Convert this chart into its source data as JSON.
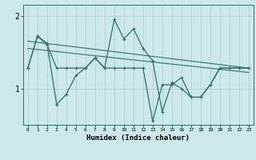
{
  "xlabel": "Humidex (Indice chaleur)",
  "x": [
    0,
    1,
    2,
    3,
    4,
    5,
    6,
    7,
    8,
    9,
    10,
    11,
    12,
    13,
    14,
    15,
    16,
    17,
    18,
    19,
    20,
    21,
    22,
    23
  ],
  "line1": [
    1.28,
    1.72,
    1.62,
    0.78,
    0.92,
    1.18,
    1.28,
    1.42,
    1.28,
    1.95,
    1.68,
    1.82,
    1.55,
    1.38,
    0.68,
    1.08,
    1.0,
    0.88,
    0.88,
    1.05,
    1.28,
    1.28,
    1.28,
    1.28
  ],
  "line2": [
    1.28,
    1.72,
    1.6,
    1.28,
    1.28,
    1.28,
    1.28,
    1.42,
    1.28,
    1.28,
    1.28,
    1.28,
    1.28,
    0.55,
    1.05,
    1.05,
    1.15,
    0.88,
    0.88,
    1.05,
    1.28,
    1.28,
    1.28,
    1.28
  ],
  "trend1_x": [
    0,
    23
  ],
  "trend1_y": [
    1.65,
    1.28
  ],
  "trend2_x": [
    0,
    23
  ],
  "trend2_y": [
    1.55,
    1.22
  ],
  "line_color": "#2d7070",
  "bg_color": "#cce8e8",
  "grid_color": "#aacece",
  "ylim": [
    0.5,
    2.15
  ],
  "yticks": [
    1,
    2
  ],
  "xlim": [
    -0.5,
    23.5
  ]
}
